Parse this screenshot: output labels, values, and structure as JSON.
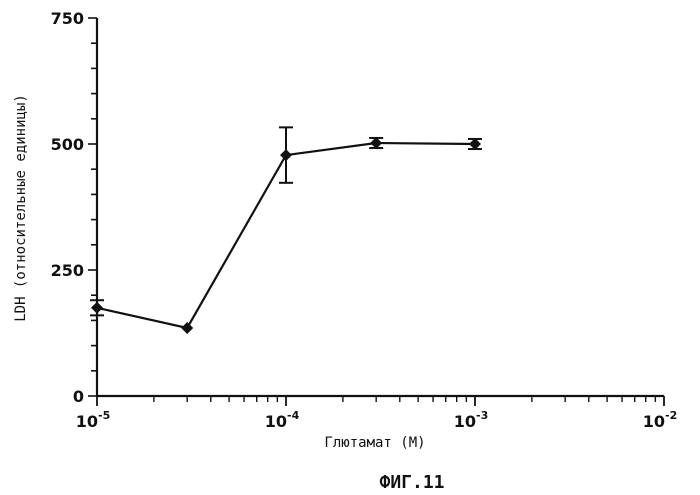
{
  "chart_data": {
    "type": "line",
    "x_scale": "log",
    "xlabel": "Глютамат (М)",
    "ylabel": "LDH (относительные единицы)",
    "xlim": [
      1e-05,
      0.01
    ],
    "ylim": [
      0,
      750
    ],
    "y_ticks": [
      0,
      250,
      500,
      750
    ],
    "y_tick_labels": [
      "0",
      "250",
      "500",
      "750"
    ],
    "x_ticks": [
      {
        "value": 1e-05,
        "base": "10",
        "exp": "-5"
      },
      {
        "value": 0.0001,
        "base": "10",
        "exp": "-4"
      },
      {
        "value": 0.001,
        "base": "10",
        "exp": "-3"
      },
      {
        "value": 0.01,
        "base": "10",
        "exp": "-2"
      }
    ],
    "series": [
      {
        "x": [
          1e-05,
          3e-05,
          0.0001,
          0.0003,
          0.001
        ],
        "values": [
          175,
          135,
          478,
          502,
          500
        ],
        "error": [
          15,
          0,
          55,
          10,
          10
        ]
      }
    ],
    "grid": false
  },
  "figure_label": "ФИГ.11"
}
